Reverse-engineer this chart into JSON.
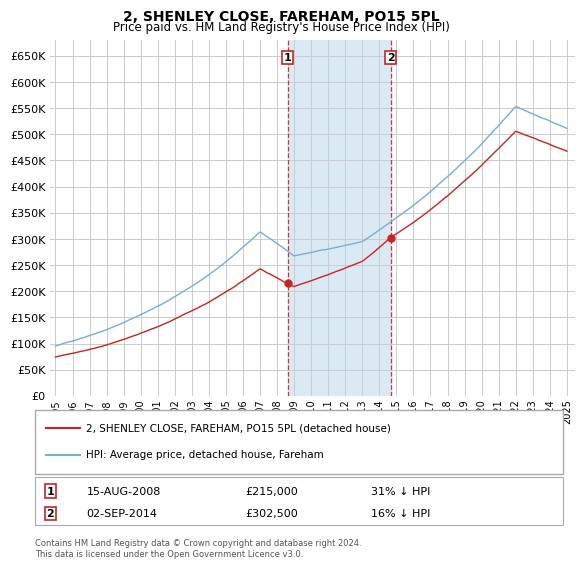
{
  "title": "2, SHENLEY CLOSE, FAREHAM, PO15 5PL",
  "subtitle": "Price paid vs. HM Land Registry's House Price Index (HPI)",
  "ylim": [
    0,
    680000
  ],
  "yticks": [
    0,
    50000,
    100000,
    150000,
    200000,
    250000,
    300000,
    350000,
    400000,
    450000,
    500000,
    550000,
    600000,
    650000
  ],
  "xlim_start": 1994.7,
  "xlim_end": 2025.5,
  "bg_color": "#ffffff",
  "grid_color": "#cccccc",
  "hpi_color": "#7aadd4",
  "price_color": "#cc2222",
  "shade_color": "#daeaf5",
  "sale1_date": "15-AUG-2008",
  "sale1_price": 215000,
  "sale1_pct": "31%",
  "sale2_date": "02-SEP-2014",
  "sale2_price": 302500,
  "sale2_pct": "16%",
  "sale1_year": 2008.62,
  "sale2_year": 2014.67,
  "legend_label1": "2, SHENLEY CLOSE, FAREHAM, PO15 5PL (detached house)",
  "legend_label2": "HPI: Average price, detached house, Fareham",
  "footer": "Contains HM Land Registry data © Crown copyright and database right 2024.\nThis data is licensed under the Open Government Licence v3.0."
}
